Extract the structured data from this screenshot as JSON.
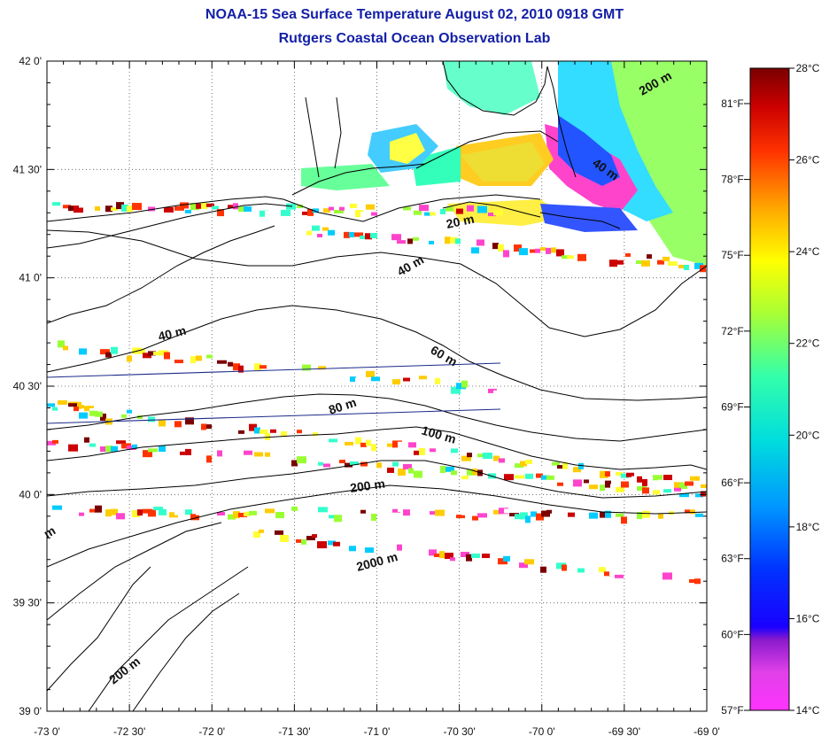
{
  "title": "NOAA-15 Sea Surface Temperature August 02, 2010 0918 GMT",
  "subtitle": "Rutgers Coastal Ocean Observation Lab",
  "map": {
    "lon_range": [
      -73,
      -69
    ],
    "lat_range": [
      39,
      42
    ],
    "lon_ticks": [
      "-73 0'",
      "-72 30'",
      "-72 0'",
      "-71 30'",
      "-71 0'",
      "-70 30'",
      "-70 0'",
      "-69 30'",
      "-69 0'"
    ],
    "lat_ticks": [
      "42 0'",
      "41 30'",
      "41 0'",
      "40 30'",
      "40 0'",
      "39 30'",
      "39 0'"
    ],
    "grid": "dotted",
    "contour_labels": [
      "200 m",
      "40 m",
      "20 m",
      "40 m",
      "40 m",
      "60 m",
      "80 m",
      "100 m",
      "200 m",
      "2000 m",
      "200 m",
      "m"
    ]
  },
  "colorbar": {
    "celsius_labels": [
      "28°C",
      "26°C",
      "24°C",
      "22°C",
      "20°C",
      "18°C",
      "16°C",
      "14°C"
    ],
    "fahrenheit_labels": [
      "81°F",
      "78°F",
      "75°F",
      "72°F",
      "69°F",
      "66°F",
      "63°F",
      "60°F",
      "57°F"
    ],
    "range_c": [
      14,
      28
    ],
    "range_f": [
      57,
      82.4
    ]
  },
  "colors": {
    "title": "#1420a6",
    "coastline": "#000000",
    "tracks": "#1a2a8a"
  }
}
